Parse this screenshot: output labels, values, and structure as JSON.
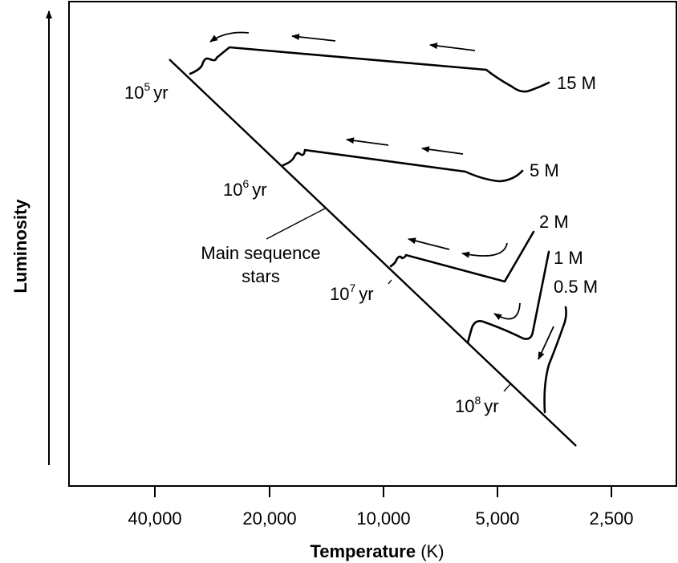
{
  "chart_data": {
    "type": "line",
    "title": "",
    "xlabel_bold": "Temperature",
    "xlabel_unit": "(K)",
    "ylabel": "Luminosity",
    "x_scale": "log-reversed",
    "x_ticks": [
      40000,
      20000,
      10000,
      5000,
      2500
    ],
    "x_tick_labels": [
      "40,000",
      "20,000",
      "10,000",
      "5,000",
      "2,500"
    ],
    "grid": false,
    "main_sequence_label": [
      "Main sequence",
      "stars"
    ],
    "series": [
      {
        "name": "15 M"
      },
      {
        "name": "5 M"
      },
      {
        "name": "2 M"
      },
      {
        "name": "1 M"
      },
      {
        "name": "0.5 M"
      }
    ],
    "timescales": [
      {
        "base": "10",
        "exp": "5",
        "unit": "yr"
      },
      {
        "base": "10",
        "exp": "6",
        "unit": "yr"
      },
      {
        "base": "10",
        "exp": "7",
        "unit": "yr"
      },
      {
        "base": "10",
        "exp": "8",
        "unit": "yr"
      }
    ]
  }
}
